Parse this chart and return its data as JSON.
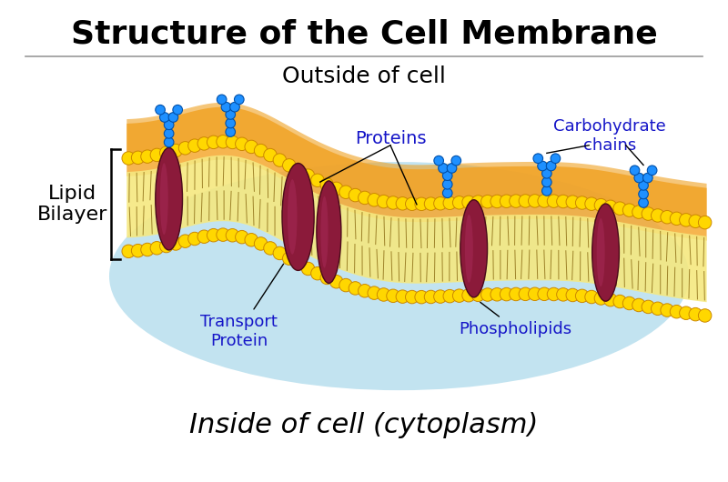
{
  "title": "Structure of the Cell Membrane",
  "title_fontsize": 26,
  "title_fontweight": "bold",
  "outside_label": "Outside of cell",
  "outside_fontsize": 18,
  "inside_label": "Inside of cell (cytoplasm)",
  "inside_fontsize": 22,
  "lipid_bilayer_label": "Lipid\nBilayer",
  "lipid_bilayer_fontsize": 16,
  "proteins_label": "Proteins",
  "transport_label": "Transport\nProtein",
  "phospholipids_label": "Phospholipids",
  "carbohydrate_label": "Carbohydrate\nchains",
  "label_color": "#1515C8",
  "bg_color": "#ffffff",
  "head_color": "#FFD700",
  "head_edge_color": "#CC8800",
  "tail_color": "#7B5800",
  "protein_color": "#8B1A3A",
  "protein_edge_color": "#4A0A1A",
  "carb_color": "#1E90FF",
  "carb_edge_color": "#0050AA",
  "membrane_orange": "#F5A020",
  "membrane_fill": "#F0B830",
  "tail_fill": "#F5E880",
  "cytoplasm_color": "#A8D8EA",
  "divider_color": "#999999"
}
